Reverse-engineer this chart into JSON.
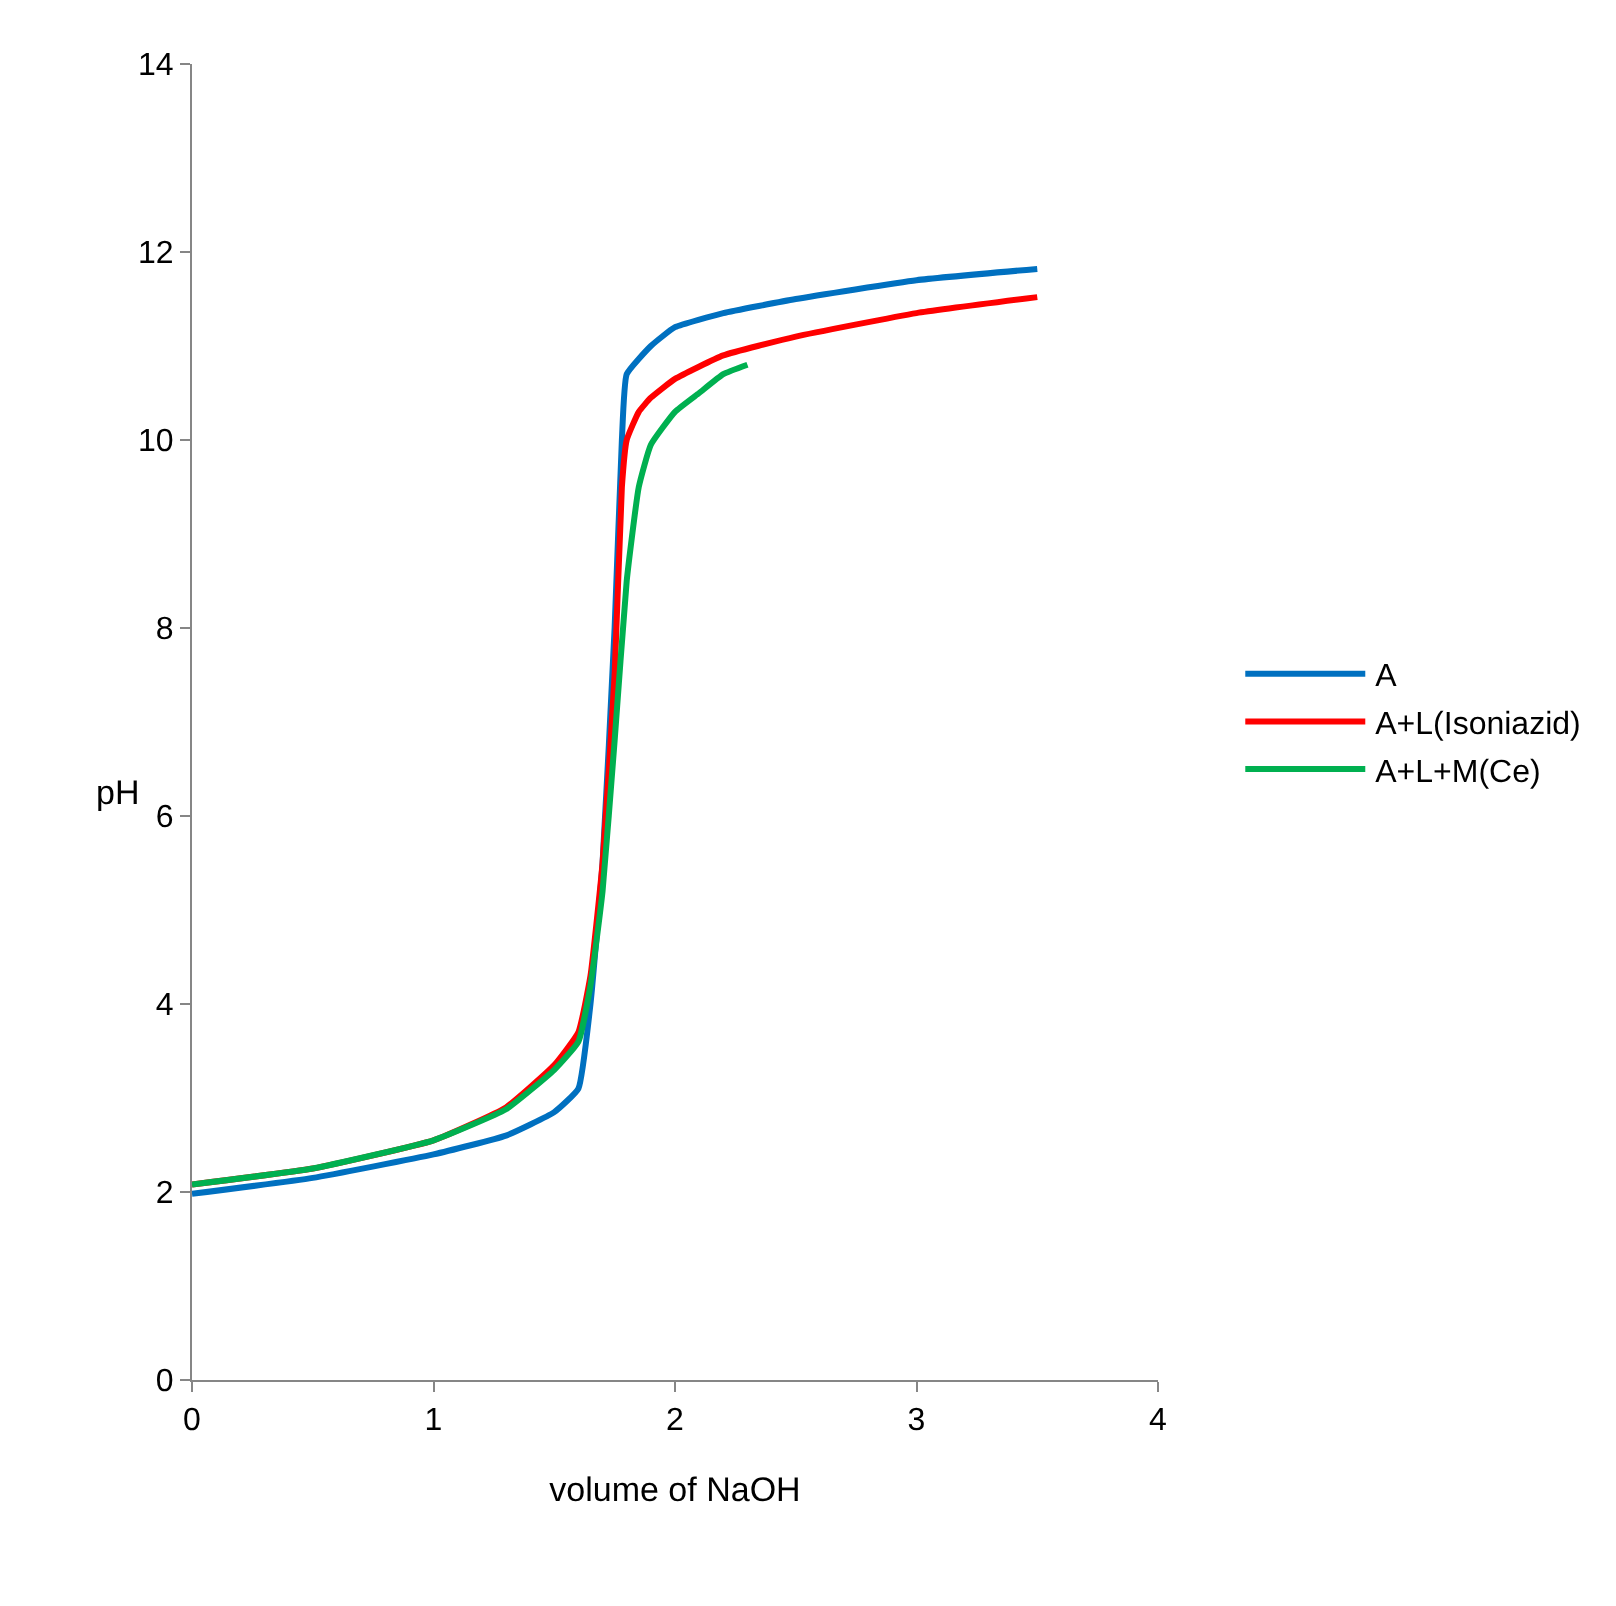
{
  "chart_data": {
    "type": "line",
    "xlabel": "volume of NaOH",
    "ylabel": "pH",
    "xlim": [
      0,
      4
    ],
    "xticks": [
      0,
      1,
      2,
      3,
      4
    ],
    "ylim": [
      0,
      14
    ],
    "yticks": [
      0,
      2,
      4,
      6,
      8,
      10,
      12,
      14
    ],
    "legend": "right",
    "marker": "none",
    "line_style": "solid",
    "series": [
      {
        "name": "A",
        "color": "#0070c0",
        "x": [
          0,
          0.5,
          1,
          1.3,
          1.5,
          1.6,
          1.65,
          1.7,
          1.75,
          1.78,
          1.8,
          1.9,
          2.0,
          2.2,
          2.5,
          3.0,
          3.5
        ],
        "values": [
          1.98,
          2.15,
          2.4,
          2.6,
          2.85,
          3.1,
          4.0,
          5.5,
          8.0,
          10.0,
          10.7,
          11.0,
          11.2,
          11.35,
          11.5,
          11.7,
          11.82
        ]
      },
      {
        "name": "A+L(Isoniazid)",
        "color": "#ff0000",
        "x": [
          0,
          0.5,
          1,
          1.3,
          1.5,
          1.6,
          1.65,
          1.7,
          1.75,
          1.78,
          1.8,
          1.85,
          1.9,
          2.0,
          2.2,
          2.5,
          3.0,
          3.5
        ],
        "values": [
          2.08,
          2.25,
          2.55,
          2.9,
          3.35,
          3.7,
          4.3,
          5.5,
          7.5,
          9.5,
          10.0,
          10.3,
          10.45,
          10.65,
          10.9,
          11.1,
          11.35,
          11.52
        ]
      },
      {
        "name": "A+L+M(Ce)",
        "color": "#00b050",
        "x": [
          0,
          0.5,
          1,
          1.3,
          1.5,
          1.6,
          1.65,
          1.7,
          1.75,
          1.8,
          1.85,
          1.9,
          2.0,
          2.1,
          2.2,
          2.3
        ],
        "values": [
          2.08,
          2.25,
          2.55,
          2.88,
          3.3,
          3.6,
          4.2,
          5.2,
          6.8,
          8.5,
          9.5,
          9.95,
          10.3,
          10.5,
          10.7,
          10.8
        ]
      }
    ]
  }
}
